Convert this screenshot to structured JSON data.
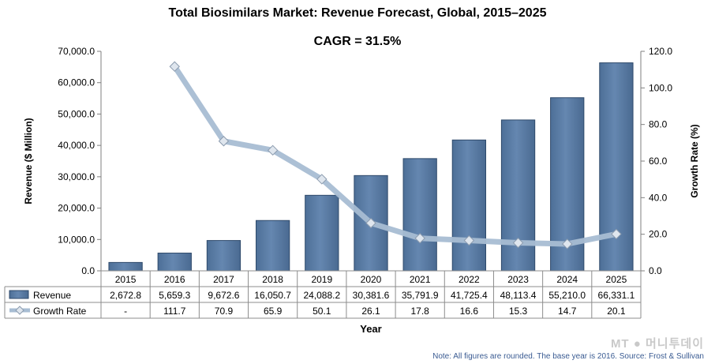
{
  "chart_data": {
    "type": "bar",
    "title": "Total Biosimilars Market: Revenue Forecast, Global, 2015–2025",
    "subtitle": "CAGR = 31.5%",
    "categories": [
      "2015",
      "2016",
      "2017",
      "2018",
      "2019",
      "2020",
      "2021",
      "2022",
      "2023",
      "2024",
      "2025"
    ],
    "series": [
      {
        "name": "Revenue",
        "type": "bar",
        "axis": "left",
        "values": [
          2672.8,
          5659.3,
          9672.6,
          16050.7,
          24088.2,
          30381.6,
          35791.9,
          41725.4,
          48113.4,
          55210.0,
          66331.1
        ],
        "labels": [
          "2,672.8",
          "5,659.3",
          "9,672.6",
          "16,050.7",
          "24,088.2",
          "30,381.6",
          "35,791.9",
          "41,725.4",
          "48,113.4",
          "55,210.0",
          "66,331.1"
        ],
        "color": "#5b7fa8"
      },
      {
        "name": "Growth Rate",
        "type": "line",
        "axis": "right",
        "values": [
          null,
          111.7,
          70.9,
          65.9,
          50.1,
          26.1,
          17.8,
          16.6,
          15.3,
          14.7,
          20.1
        ],
        "labels": [
          "-",
          "111.7",
          "70.9",
          "65.9",
          "50.1",
          "26.1",
          "17.8",
          "16.6",
          "15.3",
          "14.7",
          "20.1"
        ],
        "color": "#a8bdd3"
      }
    ],
    "xlabel": "Year",
    "ylabel": "Revenue ($ Million)",
    "ylabel_right": "Growth Rate (%)",
    "ylim": [
      0,
      70000
    ],
    "ylim_right": [
      0,
      120
    ],
    "yticks": [
      "0.0",
      "10,000.0",
      "20,000.0",
      "30,000.0",
      "40,000.0",
      "50,000.0",
      "60,000.0",
      "70,000.0"
    ],
    "yticks_right": [
      "0.0",
      "20.0",
      "40.0",
      "60.0",
      "80.0",
      "100.0",
      "120.0"
    ],
    "grid": false,
    "legend": "data-table"
  },
  "note": "Note: All figures are rounded. The base year is 2016. Source: Frost & Sullivan",
  "watermark": "MT ● 머니투데이"
}
